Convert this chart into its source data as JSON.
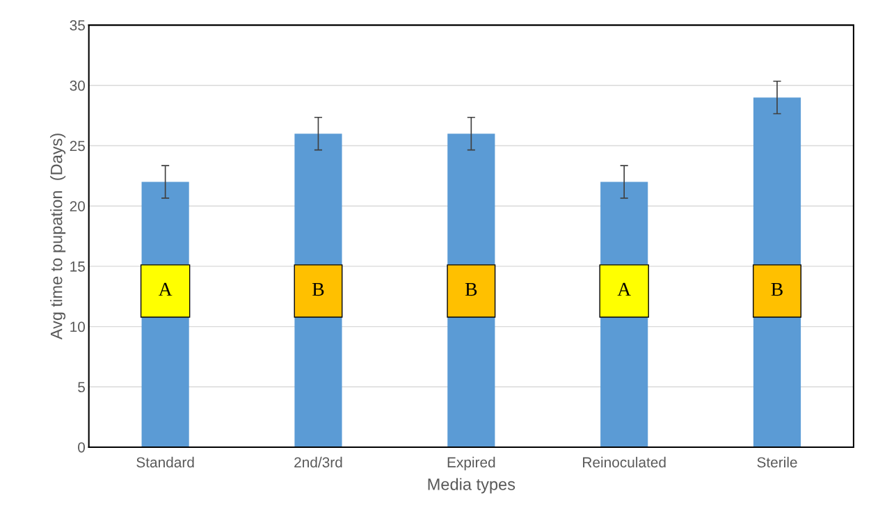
{
  "chart_data": {
    "type": "bar",
    "xlabel": "Media types",
    "ylabel": "Avg time to pupation  (Days)",
    "categories": [
      "Standard",
      "2nd/3rd",
      "Expired",
      "Reinoculated",
      "Sterile"
    ],
    "values": [
      22,
      26,
      26,
      22,
      29
    ],
    "errors": [
      1.35,
      1.35,
      1.35,
      1.35,
      1.35
    ],
    "color": "#5b9bd5",
    "ylim": [
      0,
      35
    ],
    "yticks": [
      0,
      5,
      10,
      15,
      20,
      25,
      30,
      35
    ],
    "grid": "y",
    "annotations": [
      "A",
      "B",
      "B",
      "A",
      "B"
    ]
  }
}
